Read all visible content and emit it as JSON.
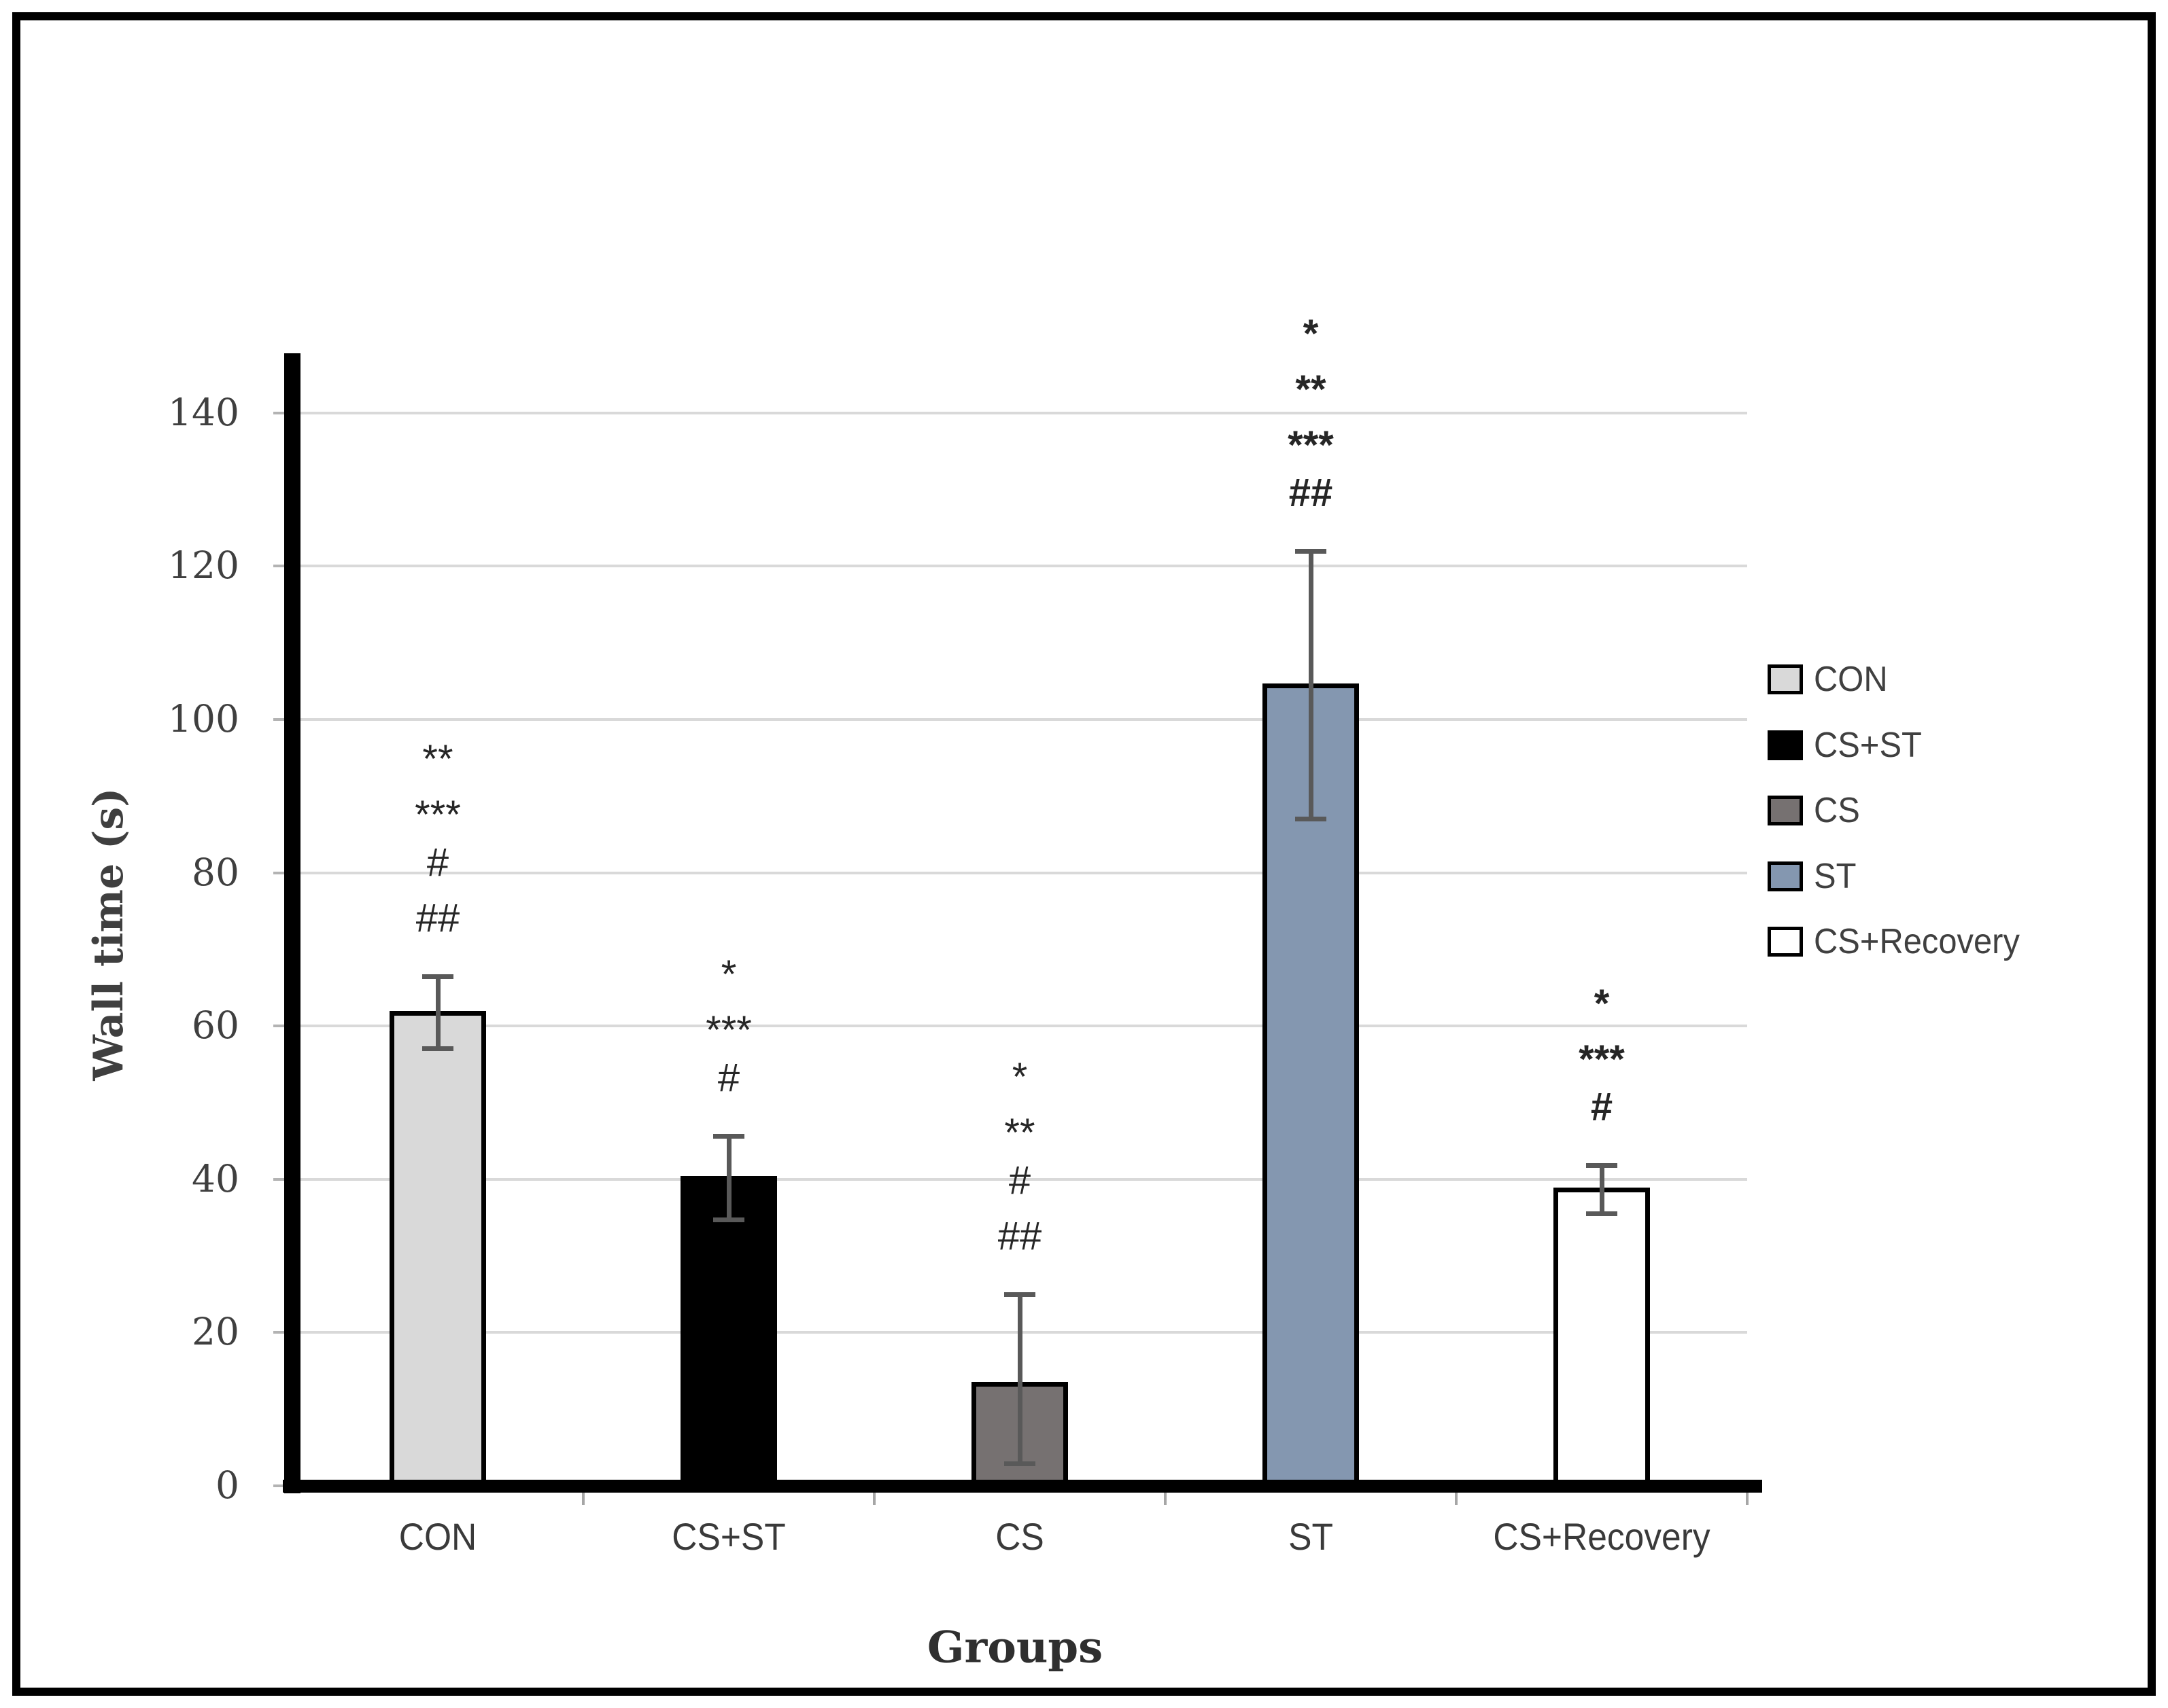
{
  "figure": {
    "background": "#ffffff",
    "frame_color": "#000000"
  },
  "chart_data": {
    "type": "bar",
    "title": "",
    "xlabel": "Groups",
    "ylabel": "Wall time (s)",
    "ylim": [
      0,
      148
    ],
    "yticks": [
      0,
      20,
      40,
      60,
      80,
      100,
      120,
      140
    ],
    "grid": true,
    "legend_position": "right-middle",
    "categories": [
      "CON",
      "CS+ST",
      "CS",
      "ST",
      "CS+Recovery"
    ],
    "series": [
      {
        "name": "Wall time (s)",
        "values": [
          62,
          40.4,
          13.6,
          104.7,
          38.9
        ],
        "error_plus": [
          4.5,
          5.3,
          11.4,
          17.3,
          2.9
        ],
        "error_minus": [
          5.0,
          5.7,
          10.8,
          17.7,
          3.4
        ],
        "colors": [
          "#d9d9d9",
          "#000000",
          "#767171",
          "#8497b0",
          "#ffffff"
        ]
      }
    ],
    "significance_annotations": [
      {
        "category": "CON",
        "marks": [
          "**",
          "***",
          "#",
          "##"
        ]
      },
      {
        "category": "CS+ST",
        "marks": [
          "*",
          "***",
          "#"
        ]
      },
      {
        "category": "CS",
        "marks": [
          "*",
          "**",
          "#",
          "##"
        ]
      },
      {
        "category": "ST",
        "marks": [
          "*",
          "**",
          "***",
          "##"
        ]
      },
      {
        "category": "CS+Recovery",
        "marks": [
          "*",
          "***",
          "#"
        ]
      }
    ]
  },
  "legend": {
    "items": [
      {
        "label": "CON",
        "color": "#d9d9d9"
      },
      {
        "label": "CS+ST",
        "color": "#000000"
      },
      {
        "label": "CS",
        "color": "#767171"
      },
      {
        "label": "ST",
        "color": "#8497b0"
      },
      {
        "label": "CS+Recovery",
        "color": "#ffffff"
      }
    ]
  },
  "colors": {
    "bar_border": "#000000",
    "error_bar": "#595959",
    "gridline": "#d9d9d9",
    "axis": "#000000",
    "tick_text": "#3f3f3f"
  }
}
